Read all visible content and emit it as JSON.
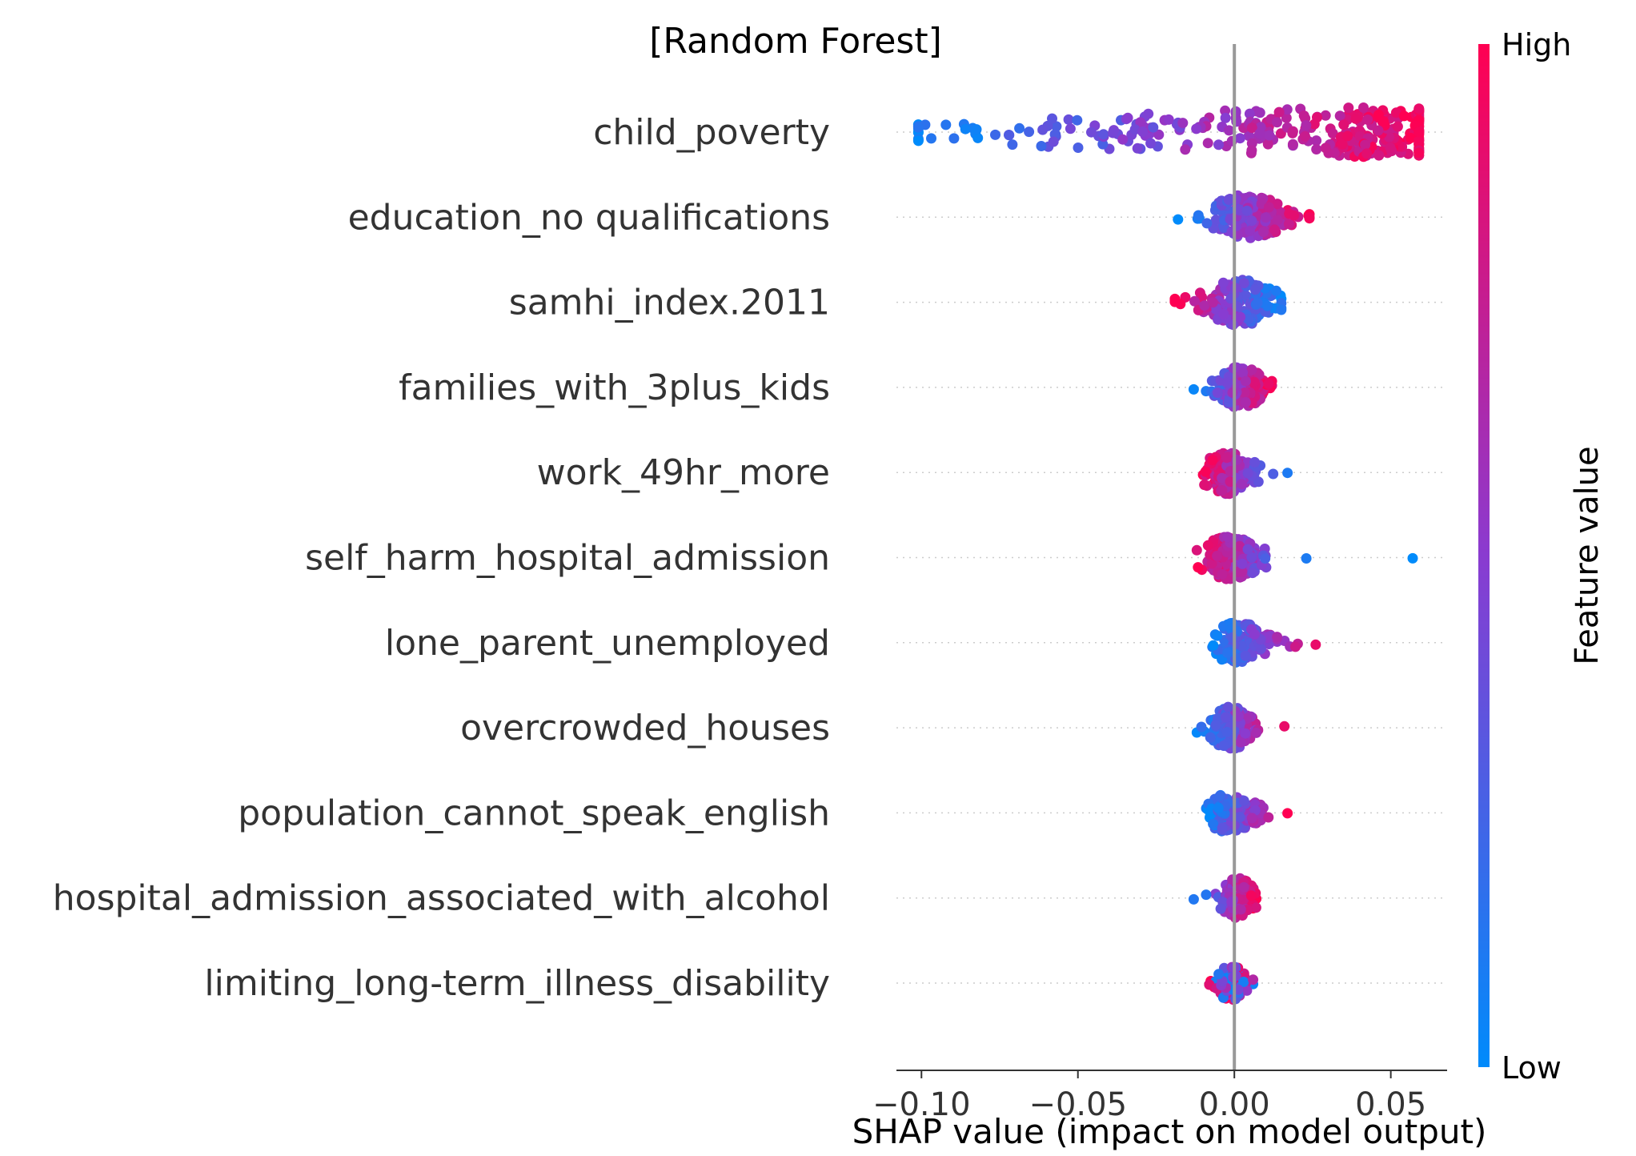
{
  "chart_data": {
    "type": "scatter",
    "subtype": "shap-beeswarm",
    "title": "[Random Forest]",
    "xlabel": "SHAP value (impact on model output)",
    "xlim": [
      -0.108,
      0.068
    ],
    "xticks": [
      -0.1,
      -0.05,
      0.0,
      0.05
    ],
    "xtick_labels": [
      "−0.10",
      "−0.05",
      "0.00",
      "0.05"
    ],
    "zero_line": 0.0,
    "colorbar": {
      "title": "Feature value",
      "high_label": "High",
      "low_label": "Low",
      "low_color": "#008bfb",
      "high_color": "#ff0052"
    },
    "features": [
      {
        "name": "child_poverty",
        "min": -0.101,
        "max": 0.059,
        "peak": 0.032,
        "spread_left": 0.075,
        "spread_right": 0.03,
        "width": 28,
        "n": 340,
        "corr": 1
      },
      {
        "name": "education_no qualifications",
        "min": -0.018,
        "max": 0.024,
        "peak": 0.004,
        "spread_left": 0.008,
        "spread_right": 0.008,
        "width": 26,
        "n": 170,
        "corr": 1
      },
      {
        "name": "samhi_index.2011",
        "min": -0.019,
        "max": 0.015,
        "peak": 0.002,
        "spread_left": 0.008,
        "spread_right": 0.006,
        "width": 26,
        "n": 160,
        "corr": -1
      },
      {
        "name": "families_with_3plus_kids",
        "min": -0.013,
        "max": 0.012,
        "peak": 0.002,
        "spread_left": 0.005,
        "spread_right": 0.005,
        "width": 24,
        "n": 140,
        "corr": 1
      },
      {
        "name": "work_49hr_more",
        "min": -0.01,
        "max": 0.017,
        "peak": -0.002,
        "spread_left": 0.004,
        "spread_right": 0.006,
        "width": 24,
        "n": 140,
        "corr": -1
      },
      {
        "name": "self_harm_hospital_admission",
        "min": -0.012,
        "max": 0.023,
        "peak": -0.002,
        "spread_left": 0.004,
        "spread_right": 0.008,
        "width": 24,
        "n": 150,
        "corr": -1,
        "outliers": [
          0.057
        ]
      },
      {
        "name": "lone_parent_unemployed",
        "min": -0.007,
        "max": 0.026,
        "peak": 0.001,
        "spread_left": 0.003,
        "spread_right": 0.008,
        "width": 22,
        "n": 130,
        "corr": 1
      },
      {
        "name": "overcrowded_houses",
        "min": -0.012,
        "max": 0.016,
        "peak": -0.001,
        "spread_left": 0.004,
        "spread_right": 0.005,
        "width": 24,
        "n": 140,
        "corr": 1
      },
      {
        "name": "population_cannot_speak_english",
        "min": -0.009,
        "max": 0.017,
        "peak": -0.001,
        "spread_left": 0.004,
        "spread_right": 0.006,
        "width": 22,
        "n": 130,
        "corr": 1
      },
      {
        "name": "hospital_admission_associated_with_alcohol",
        "min": -0.013,
        "max": 0.007,
        "peak": 0.001,
        "spread_left": 0.004,
        "spread_right": 0.003,
        "width": 22,
        "n": 110,
        "corr": 1
      },
      {
        "name": "limiting_long-term_illness_disability",
        "min": -0.008,
        "max": 0.006,
        "peak": -0.001,
        "spread_left": 0.003,
        "spread_right": 0.003,
        "width": 20,
        "n": 100,
        "corr": 0
      }
    ]
  }
}
